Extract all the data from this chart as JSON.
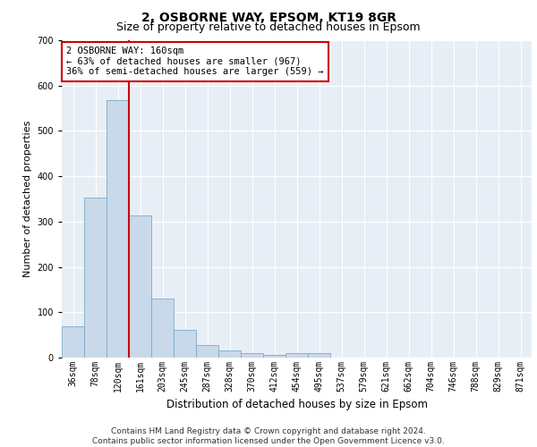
{
  "title1": "2, OSBORNE WAY, EPSOM, KT19 8GR",
  "title2": "Size of property relative to detached houses in Epsom",
  "xlabel": "Distribution of detached houses by size in Epsom",
  "ylabel": "Number of detached properties",
  "categories": [
    "36sqm",
    "78sqm",
    "120sqm",
    "161sqm",
    "203sqm",
    "245sqm",
    "287sqm",
    "328sqm",
    "370sqm",
    "412sqm",
    "454sqm",
    "495sqm",
    "537sqm",
    "579sqm",
    "621sqm",
    "662sqm",
    "704sqm",
    "746sqm",
    "788sqm",
    "829sqm",
    "871sqm"
  ],
  "values": [
    70,
    352,
    568,
    313,
    130,
    62,
    27,
    16,
    9,
    5,
    10,
    10,
    0,
    0,
    0,
    0,
    0,
    0,
    0,
    0,
    0
  ],
  "bar_color": "#c9d9ea",
  "bar_edge_color": "#7aaac8",
  "vline_color": "#cc0000",
  "vline_x": 2.5,
  "annotation_text": "2 OSBORNE WAY: 160sqm\n← 63% of detached houses are smaller (967)\n36% of semi-detached houses are larger (559) →",
  "annotation_box_facecolor": "#ffffff",
  "annotation_box_edgecolor": "#cc0000",
  "background_color": "#e8eef5",
  "grid_color": "#ffffff",
  "ylim": [
    0,
    700
  ],
  "yticks": [
    0,
    100,
    200,
    300,
    400,
    500,
    600,
    700
  ],
  "title1_fontsize": 10,
  "title2_fontsize": 9,
  "xlabel_fontsize": 8.5,
  "ylabel_fontsize": 8,
  "tick_fontsize": 7,
  "annotation_fontsize": 7.5,
  "footer_fontsize": 6.5,
  "footer": "Contains HM Land Registry data © Crown copyright and database right 2024.\nContains public sector information licensed under the Open Government Licence v3.0."
}
